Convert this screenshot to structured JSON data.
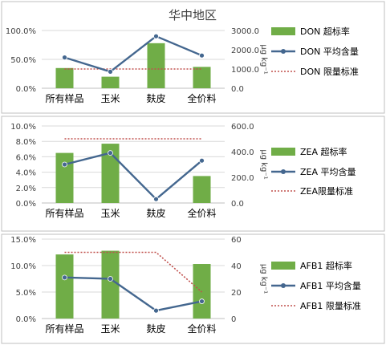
{
  "colors": {
    "bar": "#70AD47",
    "line": "#44678F",
    "limit": "#C0504D",
    "grid": "#D9D9D9",
    "frame": "#BFBFBF",
    "text": "#404040"
  },
  "chart_data": [
    {
      "type": "bar",
      "title": "华中地区",
      "categories": [
        "所有样品",
        "玉米",
        "麸皮",
        "全价料"
      ],
      "ylabel_right": "μg kg⁻¹",
      "y_left": {
        "min": 0,
        "max": 1.0,
        "ticks": [
          "0.0%",
          "50.0%",
          "100.0%"
        ]
      },
      "y_right": {
        "min": 0,
        "max": 3000,
        "ticks": [
          "0.0",
          "1000.0",
          "2000.0",
          "3000.0"
        ]
      },
      "series": [
        {
          "name": "DON 超标率",
          "kind": "bar",
          "axis": "left",
          "values": [
            0.35,
            0.2,
            0.78,
            0.37
          ]
        },
        {
          "name": "DON 平均含量",
          "kind": "line",
          "axis": "right",
          "values": [
            1600,
            860,
            2700,
            1700
          ]
        },
        {
          "name": "DON 限量标准",
          "kind": "dotted",
          "axis": "right",
          "values": [
            1000,
            1000,
            1000,
            1000
          ]
        }
      ],
      "legend": "right"
    },
    {
      "type": "bar",
      "title": "",
      "categories": [
        "所有样品",
        "玉米",
        "麸皮",
        "全价料"
      ],
      "ylabel_right": "μg kg⁻¹",
      "y_left": {
        "min": 0,
        "max": 0.1,
        "ticks": [
          "0.0%",
          "2.0%",
          "4.0%",
          "6.0%",
          "8.0%",
          "10.0%"
        ]
      },
      "y_right": {
        "min": 0,
        "max": 600,
        "ticks": [
          "0.0",
          "200.0",
          "400.0",
          "600.0"
        ]
      },
      "series": [
        {
          "name": "ZEA 超标率",
          "kind": "bar",
          "axis": "left",
          "values": [
            0.065,
            0.077,
            0.0,
            0.035
          ]
        },
        {
          "name": "ZEA 平均含量",
          "kind": "line",
          "axis": "right",
          "values": [
            300,
            390,
            30,
            330
          ]
        },
        {
          "name": "ZEA限量标准",
          "kind": "dotted",
          "axis": "right",
          "values": [
            500,
            500,
            500,
            500
          ]
        }
      ],
      "legend": "right"
    },
    {
      "type": "bar",
      "title": "",
      "categories": [
        "所有样品",
        "玉米",
        "麸皮",
        "全价料"
      ],
      "ylabel_right": "μg kg⁻¹",
      "y_left": {
        "min": 0,
        "max": 0.15,
        "ticks": [
          "0.0%",
          "5.0%",
          "10.0%",
          "15.0%"
        ]
      },
      "y_right": {
        "min": 0,
        "max": 60,
        "ticks": [
          "0",
          "20",
          "40",
          "60"
        ]
      },
      "series": [
        {
          "name": "AFB1 超标率",
          "kind": "bar",
          "axis": "left",
          "values": [
            0.121,
            0.128,
            0.0,
            0.103
          ]
        },
        {
          "name": "AFB1 平均含量",
          "kind": "line",
          "axis": "right",
          "values": [
            31,
            30,
            6,
            13
          ]
        },
        {
          "name": "AFB1 限量标准",
          "kind": "dotted",
          "axis": "right",
          "values": [
            50,
            50,
            50,
            20
          ]
        }
      ],
      "legend": "right"
    }
  ]
}
